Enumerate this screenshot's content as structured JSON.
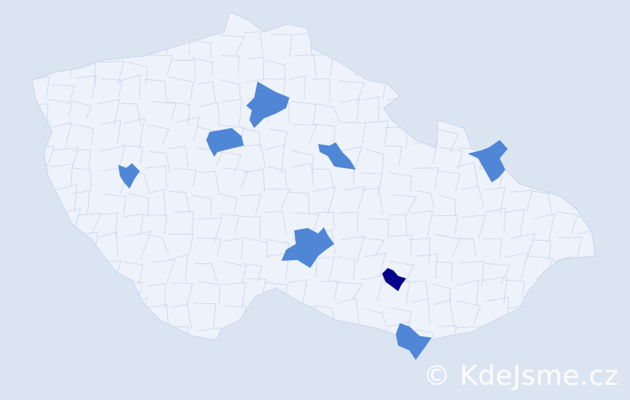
{
  "map": {
    "colors": {
      "background": "#dbe5f2",
      "land": "#eef2fa",
      "border": "#c9d4ec",
      "highlight": "#4f86d6",
      "highlight_strong": "#00008b"
    },
    "highlighted_districts": 7,
    "strong_districts": 1
  },
  "watermark": "© KdeJsme.cz"
}
